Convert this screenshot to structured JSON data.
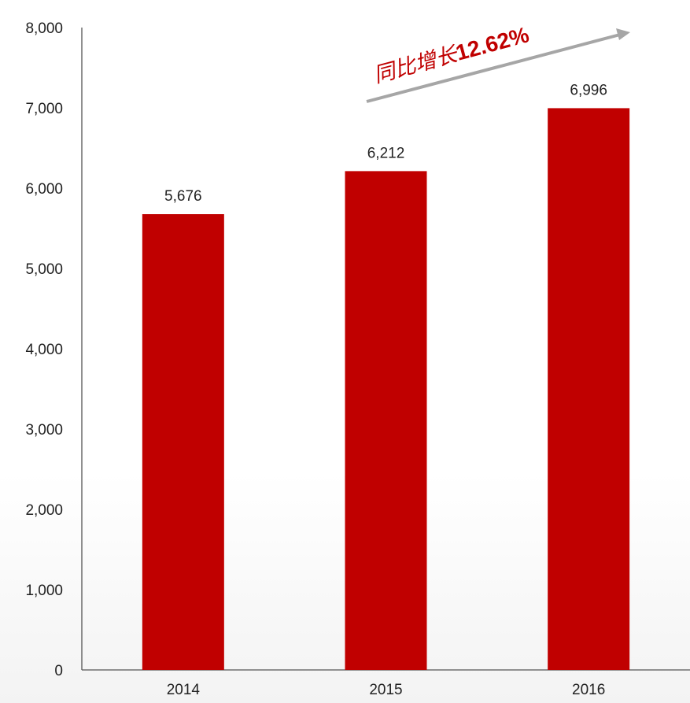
{
  "chart_data": {
    "type": "bar",
    "categories": [
      "2014",
      "2015",
      "2016"
    ],
    "values": [
      5676,
      6212,
      6996
    ],
    "data_labels": [
      "5,676",
      "6,212",
      "6,996"
    ],
    "ylim": [
      0,
      8000
    ],
    "yticks": [
      "0",
      "1,000",
      "2,000",
      "3,000",
      "4,000",
      "5,000",
      "6,000",
      "7,000",
      "8,000"
    ],
    "title": "",
    "xlabel": "",
    "ylabel": "",
    "grid": false,
    "bar_color": "#c00000",
    "annotation": {
      "prefix": "同比增长",
      "value": "12.62%",
      "color": "#c00000",
      "arrow_color": "#a6a6a6"
    }
  }
}
